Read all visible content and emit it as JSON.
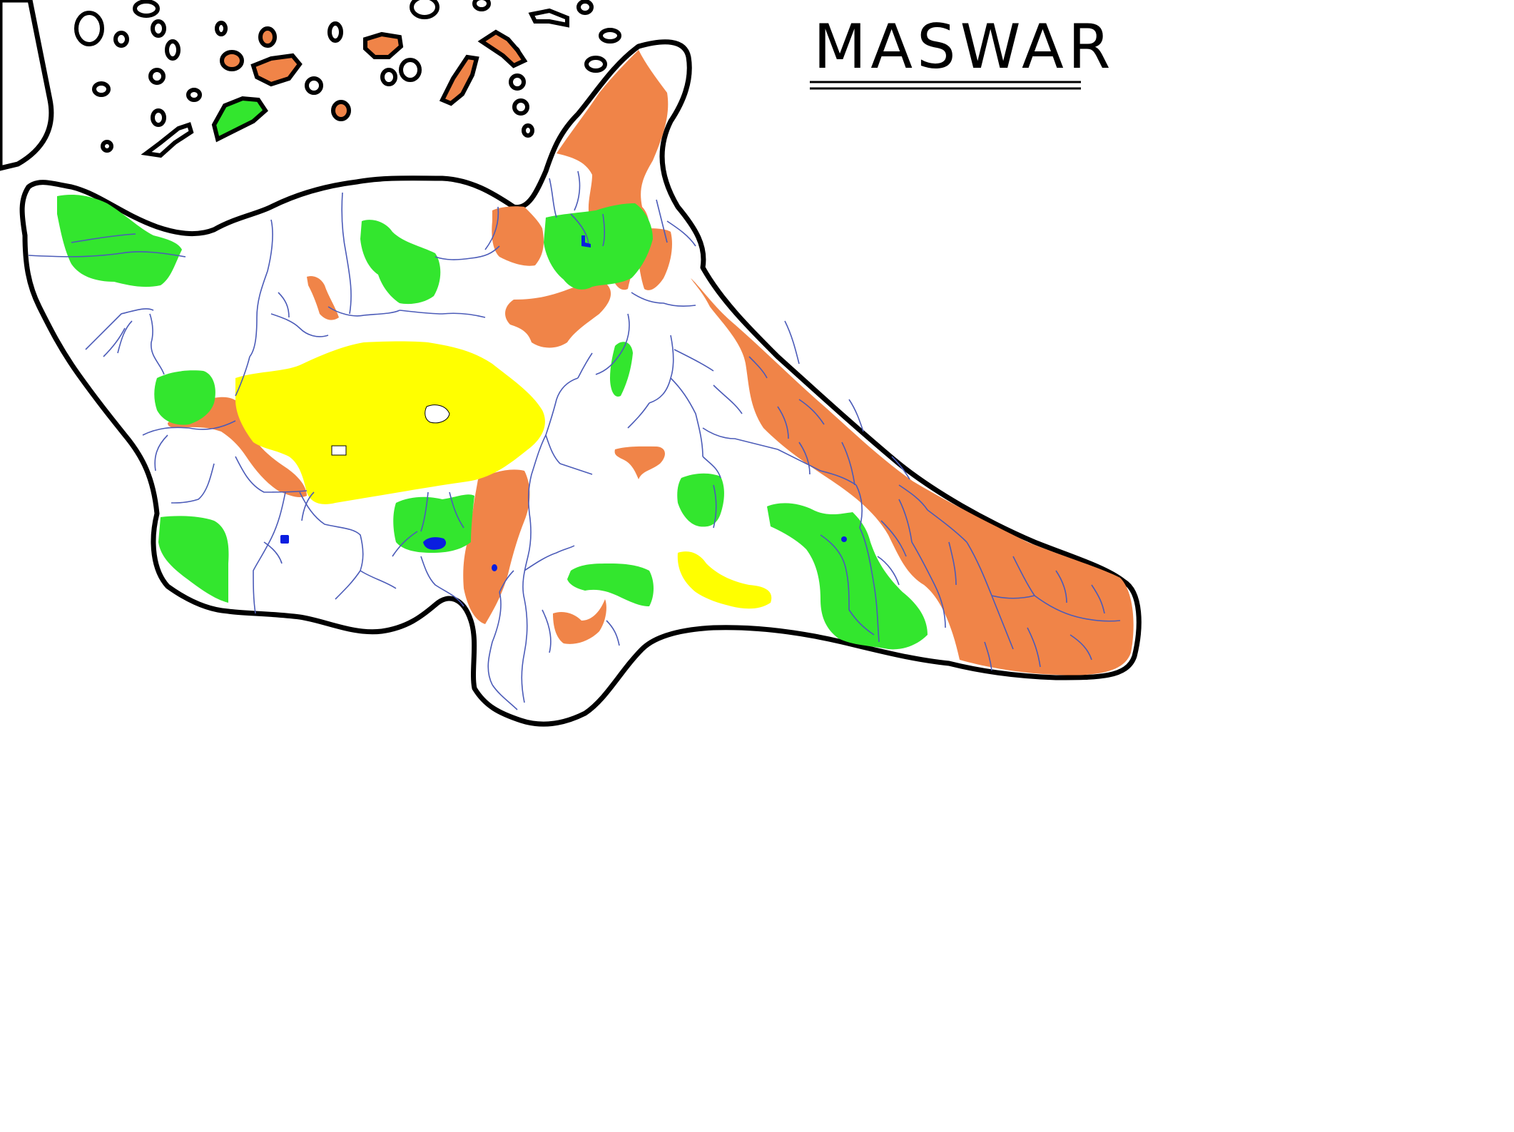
{
  "map": {
    "title": "MASWAR",
    "colors": {
      "background": "#ffffff",
      "coastline": "#000000",
      "hills": "#f08448",
      "forest": "#33e62e",
      "desert": "#ffff00",
      "rivers": "#4b5bb8",
      "lakes": "#0a1ee0"
    },
    "features": [
      "coastline",
      "islands",
      "hills",
      "forests",
      "desert",
      "rivers",
      "lakes"
    ]
  }
}
